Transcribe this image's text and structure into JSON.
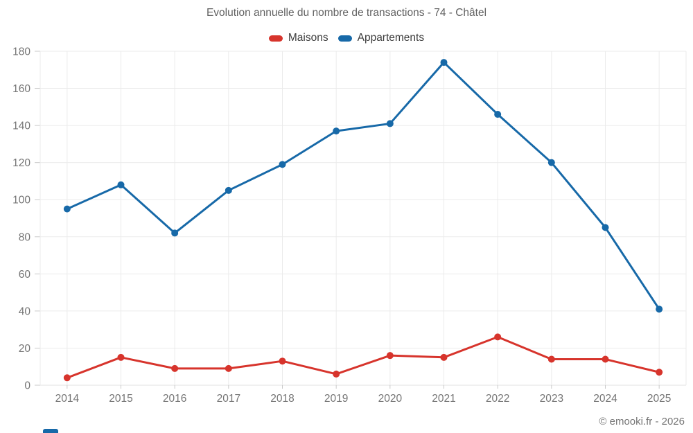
{
  "title": "Evolution annuelle du nombre de transactions - 74 - Châtel",
  "footer": "© emooki.fr - 2026",
  "legend": {
    "items": [
      {
        "label": "Maisons",
        "color": "#d7342c"
      },
      {
        "label": "Appartements",
        "color": "#1769a8"
      }
    ]
  },
  "colors": {
    "title_text": "#616161",
    "axis_text": "#757575",
    "legend_text": "#3d3d3d",
    "gridline": "#ebebeb",
    "zero_line": "#e0e0e0",
    "tick": "#c9c9c9",
    "maisons": "#d7342c",
    "appartements": "#1769a8",
    "partial_element": "#1769a8"
  },
  "chart_data": {
    "type": "line",
    "title": "Evolution annuelle du nombre de transactions - 74 - Châtel",
    "categories": [
      "2014",
      "2015",
      "2016",
      "2017",
      "2018",
      "2019",
      "2020",
      "2021",
      "2022",
      "2023",
      "2024",
      "2025"
    ],
    "series": [
      {
        "name": "Maisons",
        "color": "#d7342c",
        "values": [
          4,
          15,
          9,
          9,
          13,
          6,
          16,
          15,
          26,
          14,
          14,
          7
        ]
      },
      {
        "name": "Appartements",
        "color": "#1769a8",
        "values": [
          95,
          108,
          82,
          105,
          119,
          137,
          141,
          174,
          146,
          120,
          85,
          41
        ]
      }
    ],
    "xlabel": "",
    "ylabel": "",
    "ylim": [
      0,
      180
    ],
    "y_ticks": [
      0,
      20,
      40,
      60,
      80,
      100,
      120,
      140,
      160,
      180
    ],
    "grid": true,
    "legend_position": "top"
  }
}
